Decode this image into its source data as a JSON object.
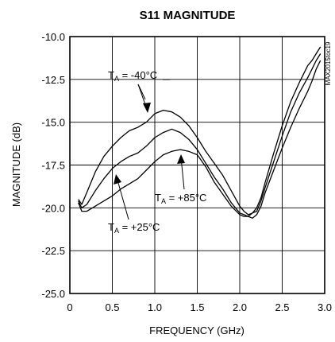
{
  "chart_data": {
    "type": "line",
    "title": "S11 MAGNITUDE",
    "xlabel": "FREQUENCY (GHz)",
    "ylabel": "MAGNITUDE (dB)",
    "xlim": [
      0,
      3.0
    ],
    "ylim": [
      -25.0,
      -10.0
    ],
    "x_ticks": [
      "0",
      "0.5",
      "1.0",
      "1.5",
      "2.0",
      "2.5",
      "3.0"
    ],
    "y_ticks": [
      "-10.0",
      "-12.5",
      "-15.0",
      "-17.5",
      "-20.0",
      "-22.5",
      "-25.0"
    ],
    "grid": true,
    "side_label": "MAX2015toc19",
    "annotations": [
      {
        "text": "T",
        "sub": "A",
        "rest": " = -40°C"
      },
      {
        "text": "T",
        "sub": "A",
        "rest": " = +85°C"
      },
      {
        "text": "T",
        "sub": "A",
        "rest": " = +25°C"
      }
    ],
    "series": [
      {
        "x": [
          0.1,
          0.14,
          0.2,
          0.3,
          0.4,
          0.5,
          0.6,
          0.7,
          0.8,
          0.9,
          1.0,
          1.1,
          1.2,
          1.3,
          1.4,
          1.5,
          1.6,
          1.7,
          1.8,
          1.9,
          2.0,
          2.05,
          2.1,
          2.15,
          2.2,
          2.25,
          2.3,
          2.4,
          2.5,
          2.6,
          2.7,
          2.8,
          2.85,
          2.9,
          2.95
        ],
        "y": [
          -19.5,
          -19.8,
          -19.1,
          -17.9,
          -17.0,
          -16.4,
          -15.9,
          -15.5,
          -15.3,
          -15.0,
          -14.5,
          -14.3,
          -14.4,
          -14.7,
          -15.2,
          -15.9,
          -16.7,
          -17.4,
          -18.1,
          -19.0,
          -19.9,
          -20.2,
          -20.4,
          -20.3,
          -20.0,
          -19.4,
          -18.5,
          -16.8,
          -15.2,
          -13.8,
          -12.7,
          -11.7,
          -11.4,
          -11.0,
          -10.6
        ]
      },
      {
        "x": [
          0.1,
          0.14,
          0.2,
          0.3,
          0.4,
          0.5,
          0.6,
          0.7,
          0.8,
          0.9,
          1.0,
          1.1,
          1.2,
          1.3,
          1.4,
          1.5,
          1.6,
          1.7,
          1.8,
          1.9,
          2.0,
          2.05,
          2.1,
          2.15,
          2.2,
          2.25,
          2.3,
          2.4,
          2.5,
          2.6,
          2.7,
          2.8,
          2.85,
          2.9,
          2.95
        ],
        "y": [
          -19.6,
          -20.0,
          -19.8,
          -19.0,
          -18.3,
          -17.7,
          -17.3,
          -17.0,
          -16.8,
          -16.4,
          -15.9,
          -15.6,
          -15.4,
          -15.6,
          -16.0,
          -16.6,
          -17.4,
          -18.2,
          -18.9,
          -19.7,
          -20.3,
          -20.4,
          -20.5,
          -20.3,
          -20.2,
          -19.6,
          -18.8,
          -17.3,
          -15.8,
          -14.4,
          -13.3,
          -12.4,
          -11.9,
          -11.4,
          -11.0
        ]
      },
      {
        "x": [
          0.1,
          0.14,
          0.2,
          0.3,
          0.4,
          0.5,
          0.6,
          0.7,
          0.8,
          0.9,
          1.0,
          1.1,
          1.2,
          1.3,
          1.4,
          1.5,
          1.6,
          1.7,
          1.8,
          1.9,
          2.0,
          2.05,
          2.1,
          2.15,
          2.2,
          2.25,
          2.3,
          2.4,
          2.5,
          2.6,
          2.7,
          2.8,
          2.85,
          2.9,
          2.95
        ],
        "y": [
          -19.7,
          -20.2,
          -20.2,
          -19.9,
          -19.6,
          -19.3,
          -18.9,
          -18.6,
          -18.3,
          -17.8,
          -17.3,
          -16.9,
          -16.7,
          -16.6,
          -16.7,
          -16.9,
          -17.6,
          -18.5,
          -19.2,
          -19.9,
          -20.4,
          -20.5,
          -20.5,
          -20.6,
          -20.4,
          -19.9,
          -19.1,
          -17.8,
          -16.5,
          -15.3,
          -14.2,
          -13.2,
          -12.6,
          -11.9,
          -11.4
        ]
      }
    ]
  }
}
